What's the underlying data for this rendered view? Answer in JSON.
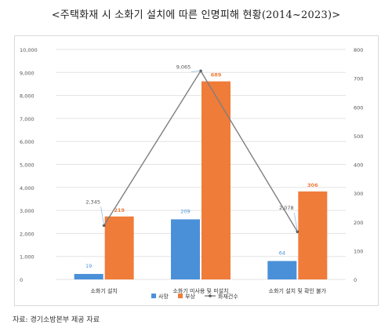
{
  "title": "<주택화재 시 소화기 설치에 따른 인명피해 현황(2014~2023)>",
  "source": "자료: 경기소방본부 제공 자료",
  "colors": {
    "deaths": "#4a90d9",
    "injuries": "#f07c3a",
    "fires": "#7f7f7f",
    "grid": "#e3e3e3"
  },
  "chart_data": {
    "type": "bar",
    "title": "<주택화재 시 소화기 설치에 따른 인명피해 현황(2014~2023)>",
    "categories": [
      "소화기 설치",
      "소화기 미사용 및 미설치",
      "소화기 설치 및 확인 불가"
    ],
    "left_axis": {
      "ylim": [
        0,
        10000
      ],
      "ticks": [
        "0",
        "1,000",
        "2,000",
        "3,000",
        "4,000",
        "5,000",
        "6,000",
        "7,000",
        "8,000",
        "9,000",
        "10,000"
      ]
    },
    "right_axis": {
      "ylim": [
        0,
        800
      ],
      "ticks": [
        "0",
        "100",
        "200",
        "300",
        "400",
        "500",
        "600",
        "700",
        "800"
      ]
    },
    "series": [
      {
        "name": "사망",
        "type": "bar",
        "axis": "right",
        "values": [
          19,
          209,
          64
        ],
        "labels": [
          "19",
          "209",
          "64"
        ]
      },
      {
        "name": "부상",
        "type": "bar",
        "axis": "right",
        "values": [
          219,
          689,
          306
        ],
        "labels": [
          "219",
          "689",
          "306"
        ]
      },
      {
        "name": "화재건수",
        "type": "line",
        "axis": "left",
        "values": [
          2345,
          9065,
          2078
        ],
        "labels": [
          "2,345",
          "9,065",
          "2,078"
        ]
      }
    ],
    "legend": {
      "placement": "bottom",
      "items": [
        "사망",
        "부상",
        "화재건수"
      ]
    },
    "grid": true
  }
}
